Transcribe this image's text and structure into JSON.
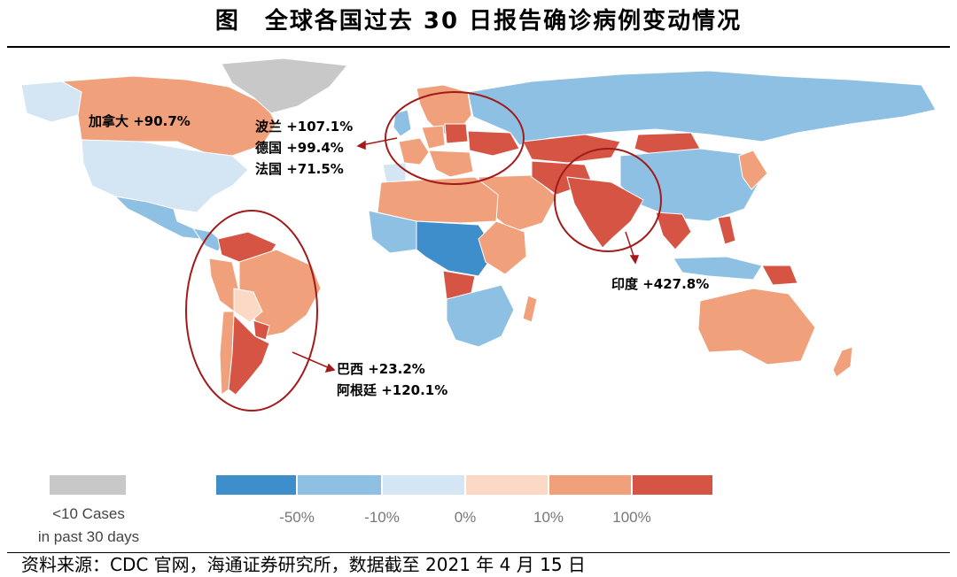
{
  "figure": {
    "title": "图　全球各国过去 30 日报告确诊病例变动情况",
    "source": "资料来源：CDC 官网，海通证券研究所，数据截至 2021 年 4 月 15 日"
  },
  "annotations": [
    {
      "id": "canada",
      "label": "加拿大 +90.7%"
    },
    {
      "id": "poland",
      "label": "波兰 +107.1%"
    },
    {
      "id": "germany",
      "label": "德国 +99.4%"
    },
    {
      "id": "france",
      "label": "法国 +71.5%"
    },
    {
      "id": "india",
      "label": "印度 +427.8%"
    },
    {
      "id": "brazil",
      "label": "巴西 +23.2%"
    },
    {
      "id": "argentina",
      "label": "阿根廷 +120.1%"
    }
  ],
  "legend": {
    "no_data_line1": "<10 Cases",
    "no_data_line2": "in past 30 days",
    "no_data_color": "#c8c8c8",
    "bins": [
      {
        "color": "#3e8ecb"
      },
      {
        "color": "#8dc0e3"
      },
      {
        "color": "#d4e6f3"
      },
      {
        "color": "#fbd9c4"
      },
      {
        "color": "#f0a07a"
      },
      {
        "color": "#d65443"
      }
    ],
    "ticks": [
      "-50%",
      "-10%",
      "0%",
      "10%",
      "100%"
    ]
  },
  "colors": {
    "dark_blue": "#3e8ecb",
    "mid_blue": "#8dc0e3",
    "light_blue": "#d4e6f3",
    "light_orange": "#fbd9c4",
    "orange": "#f0a07a",
    "red": "#d65443",
    "gray": "#c8c8c8",
    "highlight_ring": "#a31a1a"
  }
}
